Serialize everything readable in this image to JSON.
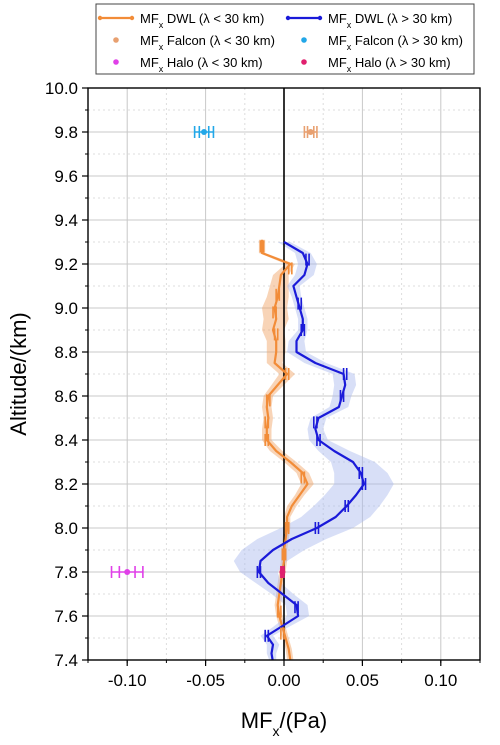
{
  "chart_data": {
    "type": "line",
    "xlabel": "MF",
    "xlabel_sub": "x",
    "xlabel_unit": "/(Pa)",
    "ylabel": "Altitude/(km)",
    "xlim": [
      -0.125,
      0.125
    ],
    "ylim": [
      7.4,
      10.0
    ],
    "xticks": [
      -0.1,
      -0.05,
      0.0,
      0.05,
      0.1
    ],
    "xtick_labels": [
      "-0.10",
      "-0.05",
      "0.00",
      "0.05",
      "0.10"
    ],
    "yticks": [
      7.4,
      7.6,
      7.8,
      8.0,
      8.2,
      8.4,
      8.6,
      8.8,
      9.0,
      9.2,
      9.4,
      9.6,
      9.8,
      10.0
    ],
    "ytick_labels": [
      "7.4",
      "7.6",
      "7.8",
      "8.0",
      "8.2",
      "8.4",
      "8.6",
      "8.8",
      "9.0",
      "9.2",
      "9.4",
      "9.6",
      "9.8",
      "10.0"
    ],
    "grid": true,
    "legend_position": "top",
    "legend": [
      {
        "prefix": "MF",
        "sub": "x",
        "text": " DWL (λ < 30 km)",
        "color": "#F28C38",
        "marker": "line"
      },
      {
        "prefix": "MF",
        "sub": "x",
        "text": " DWL (λ > 30 km)",
        "color": "#1A1AD9",
        "marker": "line"
      },
      {
        "prefix": "MF",
        "sub": "x",
        "text": " Falcon (λ < 30 km)",
        "color": "#E8A070",
        "marker": "dot"
      },
      {
        "prefix": "MF",
        "sub": "x",
        "text": " Falcon (λ > 30 km)",
        "color": "#22A7E8",
        "marker": "dot"
      },
      {
        "prefix": "MF",
        "sub": "x",
        "text": " Halo (λ < 30 km)",
        "color": "#E040E8",
        "marker": "dot"
      },
      {
        "prefix": "MF",
        "sub": "x",
        "text": " Halo (λ > 30 km)",
        "color": "#E0206E",
        "marker": "dot"
      }
    ],
    "series": [
      {
        "color": "#F28C38",
        "band_color": "#F0A060",
        "points": [
          [
            -0.014,
            9.31
          ],
          [
            -0.014,
            9.25
          ],
          [
            0.004,
            9.2
          ],
          [
            -0.002,
            9.15
          ],
          [
            -0.003,
            9.1
          ],
          [
            -0.004,
            9.05
          ],
          [
            -0.006,
            9.0
          ],
          [
            -0.005,
            8.95
          ],
          [
            -0.007,
            8.9
          ],
          [
            -0.005,
            8.85
          ],
          [
            -0.005,
            8.8
          ],
          [
            -0.006,
            8.75
          ],
          [
            0.002,
            8.7
          ],
          [
            -0.004,
            8.65
          ],
          [
            -0.01,
            8.6
          ],
          [
            -0.011,
            8.55
          ],
          [
            -0.01,
            8.5
          ],
          [
            -0.011,
            8.45
          ],
          [
            -0.011,
            8.4
          ],
          [
            -0.005,
            8.35
          ],
          [
            0.004,
            8.3
          ],
          [
            0.012,
            8.25
          ],
          [
            0.015,
            8.2
          ],
          [
            0.01,
            8.15
          ],
          [
            0.005,
            8.1
          ],
          [
            0.002,
            8.05
          ],
          [
            0.002,
            8.0
          ],
          [
            0.001,
            7.95
          ],
          [
            0.0,
            7.9
          ],
          [
            0.0,
            7.85
          ],
          [
            -0.001,
            7.8
          ],
          [
            -0.002,
            7.75
          ],
          [
            -0.003,
            7.7
          ],
          [
            -0.004,
            7.65
          ],
          [
            -0.003,
            7.6
          ],
          [
            -0.001,
            7.55
          ],
          [
            0.001,
            7.5
          ],
          [
            0.003,
            7.45
          ],
          [
            0.004,
            7.4
          ]
        ],
        "band_halfwidth": [
          0.002,
          0.002,
          0.003,
          0.005,
          0.006,
          0.007,
          0.008,
          0.008,
          0.007,
          0.006,
          0.006,
          0.005,
          0.005,
          0.004,
          0.003,
          0.003,
          0.003,
          0.003,
          0.003,
          0.004,
          0.004,
          0.004,
          0.004,
          0.003,
          0.003,
          0.002,
          0.002,
          0.002,
          0.002,
          0.002,
          0.002,
          0.002,
          0.002,
          0.002,
          0.002,
          0.002,
          0.002,
          0.002,
          0.002
        ],
        "errorbars": [
          [
            -0.014,
            9.28
          ],
          [
            0.004,
            9.18
          ],
          [
            -0.004,
            9.06
          ],
          [
            -0.006,
            8.98
          ],
          [
            -0.005,
            8.88
          ],
          [
            0.002,
            8.7
          ],
          [
            -0.01,
            8.58
          ],
          [
            -0.011,
            8.48
          ],
          [
            -0.011,
            8.4
          ],
          [
            0.012,
            8.23
          ],
          [
            0.002,
            8.0
          ],
          [
            0.0,
            7.88
          ],
          [
            -0.003,
            7.62
          ],
          [
            -0.001,
            7.52
          ]
        ],
        "errorbar_halfwidth": 0.001
      },
      {
        "color": "#1A1AD9",
        "band_color": "#A8B8EE",
        "points": [
          [
            0.0,
            9.3
          ],
          [
            0.012,
            9.25
          ],
          [
            0.015,
            9.2
          ],
          [
            0.013,
            9.15
          ],
          [
            0.006,
            9.1
          ],
          [
            0.008,
            9.05
          ],
          [
            0.01,
            9.0
          ],
          [
            0.012,
            8.95
          ],
          [
            0.012,
            8.9
          ],
          [
            0.008,
            8.85
          ],
          [
            0.008,
            8.8
          ],
          [
            0.02,
            8.75
          ],
          [
            0.038,
            8.7
          ],
          [
            0.039,
            8.65
          ],
          [
            0.037,
            8.6
          ],
          [
            0.035,
            8.55
          ],
          [
            0.022,
            8.5
          ],
          [
            0.02,
            8.45
          ],
          [
            0.022,
            8.4
          ],
          [
            0.032,
            8.35
          ],
          [
            0.044,
            8.3
          ],
          [
            0.049,
            8.25
          ],
          [
            0.051,
            8.2
          ],
          [
            0.046,
            8.15
          ],
          [
            0.04,
            8.1
          ],
          [
            0.033,
            8.05
          ],
          [
            0.021,
            8.0
          ],
          [
            0.005,
            7.95
          ],
          [
            -0.007,
            7.9
          ],
          [
            -0.015,
            7.85
          ],
          [
            -0.016,
            7.8
          ],
          [
            -0.01,
            7.75
          ],
          [
            -0.001,
            7.7
          ],
          [
            0.008,
            7.65
          ],
          [
            0.009,
            7.6
          ],
          [
            -0.002,
            7.55
          ],
          [
            -0.011,
            7.51
          ],
          [
            -0.007,
            7.47
          ],
          [
            -0.008,
            7.43
          ],
          [
            -0.007,
            7.39
          ]
        ],
        "band_halfwidth": [
          0.004,
          0.005,
          0.006,
          0.006,
          0.004,
          0.003,
          0.003,
          0.003,
          0.003,
          0.005,
          0.006,
          0.007,
          0.007,
          0.007,
          0.006,
          0.006,
          0.005,
          0.005,
          0.006,
          0.01,
          0.014,
          0.017,
          0.019,
          0.02,
          0.021,
          0.022,
          0.023,
          0.022,
          0.02,
          0.017,
          0.012,
          0.008,
          0.007,
          0.007,
          0.007,
          0.005,
          0.004,
          0.004,
          0.003,
          0.002
        ],
        "errorbars": [
          [
            0.015,
            9.22
          ],
          [
            0.01,
            9.02
          ],
          [
            0.012,
            8.9
          ],
          [
            0.039,
            8.7
          ],
          [
            0.037,
            8.6
          ],
          [
            0.02,
            8.48
          ],
          [
            0.022,
            8.4
          ],
          [
            0.049,
            8.25
          ],
          [
            0.051,
            8.2
          ],
          [
            0.04,
            8.1
          ],
          [
            0.021,
            8.0
          ],
          [
            -0.016,
            7.8
          ],
          [
            0.008,
            7.64
          ],
          [
            -0.011,
            7.51
          ]
        ],
        "errorbar_halfwidth": 0.001
      }
    ],
    "markers": [
      {
        "color": "#E8A070",
        "x": 0.017,
        "y": 9.8,
        "xerr": 0.004
      },
      {
        "color": "#22A7E8",
        "x": -0.051,
        "y": 9.8,
        "xerr": 0.006
      },
      {
        "color": "#E040E8",
        "x": -0.1,
        "y": 7.8,
        "xerr": 0.01
      },
      {
        "color": "#E0206E",
        "x": -0.001,
        "y": 7.8,
        "xerr": 0.001
      }
    ]
  }
}
